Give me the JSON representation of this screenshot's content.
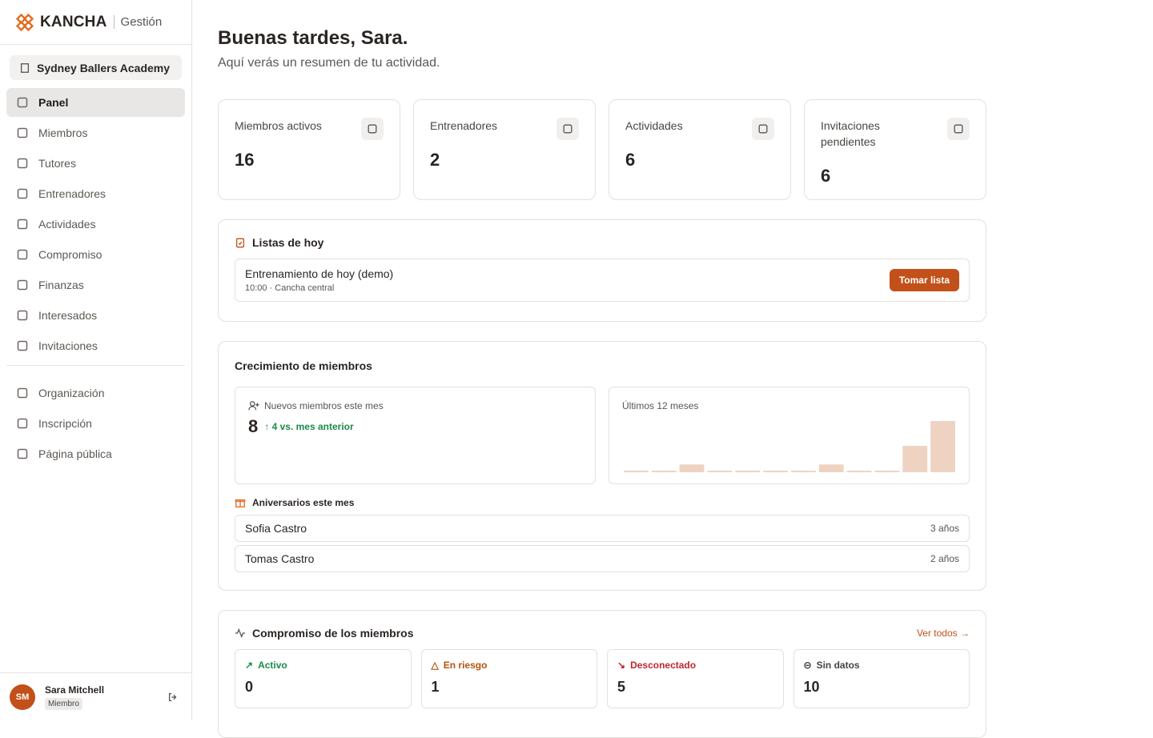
{
  "sidebar": {
    "brand": "KANCHA",
    "section": "Gestión",
    "organization": "Sydney Ballers Academy",
    "nav": [
      "Panel",
      "Miembros",
      "Tutores",
      "Entrenadores",
      "Actividades",
      "Compromiso",
      "Finanzas",
      "Interesados",
      "Invitaciones"
    ],
    "nav2": [
      "Organización",
      "Inscripción",
      "Página pública"
    ],
    "user": {
      "initials": "SM",
      "name": "Sara Mitchell",
      "role": "Miembro"
    }
  },
  "header": {
    "title": "Buenas tardes, Sara.",
    "subtitle": "Aquí verás un resumen de tu actividad."
  },
  "stats": [
    {
      "label": "Miembros activos",
      "value": 16
    },
    {
      "label": "Entrenadores",
      "value": 2
    },
    {
      "label": "Actividades",
      "value": 6
    },
    {
      "label": "Invitaciones pendientes",
      "value": 6
    }
  ],
  "today": {
    "title": "Listas de hoy",
    "item": {
      "name": "Entrenamiento de hoy (demo)",
      "details": "10:00 · Cancha central",
      "button": "Tomar lista"
    }
  },
  "growth": {
    "title": "Crecimiento de miembros",
    "new_label": "Nuevos miembros este mes",
    "new_value": 8,
    "delta": "4 vs. mes anterior",
    "chart": {
      "type": "bar",
      "title": "Últimos 12 meses",
      "values": [
        0,
        0,
        1,
        0,
        0,
        0,
        0,
        1,
        0,
        0,
        4,
        8
      ],
      "color": "#efd3c2"
    },
    "anniversaries_title": "Aniversarios este mes",
    "anniversaries": [
      {
        "name": "Sofia Castro",
        "years": "3 años"
      },
      {
        "name": "Tomas Castro",
        "years": "2 años"
      }
    ]
  },
  "engagement": {
    "title": "Compromiso de los miembros",
    "link": "Ver todos →",
    "items": [
      {
        "label": "Activo",
        "value": 0
      },
      {
        "label": "En riesgo",
        "value": 1
      },
      {
        "label": "Desconectado",
        "value": 5
      },
      {
        "label": "Sin datos",
        "value": 10
      }
    ]
  }
}
